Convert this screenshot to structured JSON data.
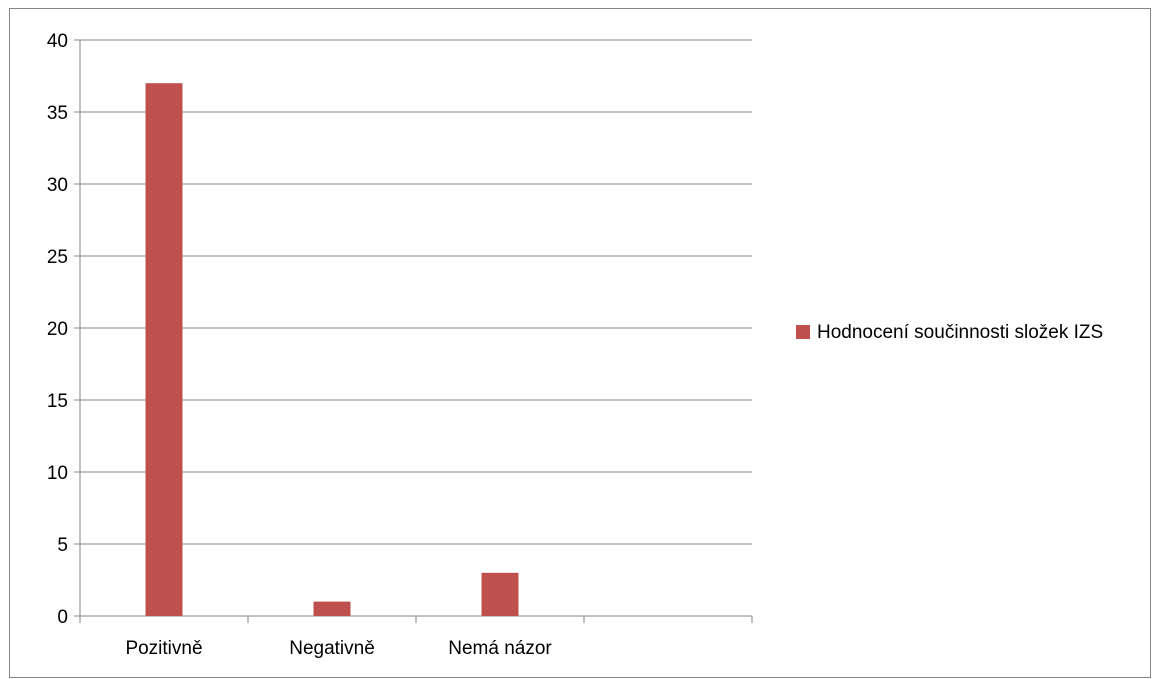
{
  "chart_data": {
    "type": "bar",
    "categories": [
      "Pozitivně",
      "Negativně",
      "Nemá názor",
      ""
    ],
    "series": [
      {
        "name": "Hodnocení součinnosti složek IZS",
        "values": [
          37,
          1,
          3,
          null
        ],
        "color": "#c0504d"
      }
    ],
    "ylim": [
      0,
      40
    ],
    "yticks": [
      0,
      5,
      10,
      15,
      20,
      25,
      30,
      35,
      40
    ],
    "grid": true,
    "legend_position": "right"
  }
}
